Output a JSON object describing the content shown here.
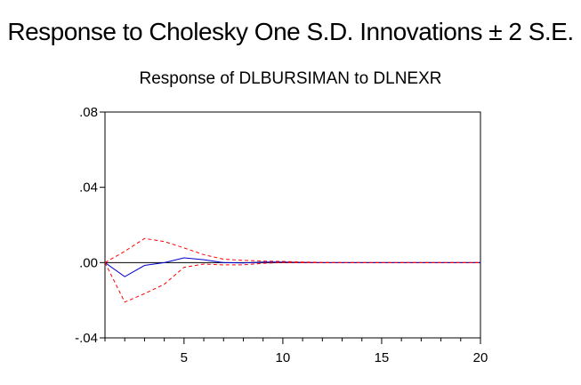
{
  "chart_data": {
    "type": "line",
    "title": "Response to Cholesky One S.D. Innovations ± 2 S.E.",
    "subtitle": "Response of DLBURSIMAN to DLNEXR",
    "xlim": [
      1,
      20
    ],
    "ylim": [
      -0.04,
      0.08
    ],
    "x_ticks": [
      5,
      10,
      15,
      20
    ],
    "x_tick_labels": [
      "5",
      "10",
      "15",
      "20"
    ],
    "y_ticks": [
      0.08,
      0.04,
      0.0,
      -0.04
    ],
    "y_tick_labels": [
      ".08",
      ".04",
      ".00",
      "-.04"
    ],
    "grid": false,
    "x": [
      1,
      2,
      3,
      4,
      5,
      6,
      7,
      8,
      9,
      10,
      11,
      12,
      13,
      14,
      15,
      16,
      17,
      18,
      19,
      20
    ],
    "series": [
      {
        "role": "response",
        "color": "#0000cc",
        "dash": "solid",
        "values": [
          0.0,
          -0.0075,
          -0.0015,
          0.0,
          0.0025,
          0.0015,
          0.0,
          -0.0002,
          0.0003,
          0.0003,
          0.0001,
          0.0,
          0.0,
          0.0,
          0.0,
          0.0,
          0.0,
          0.0,
          0.0,
          0.0
        ]
      },
      {
        "role": "upper-band",
        "color": "#ff0000",
        "dash": "dashed",
        "values": [
          0.0,
          0.006,
          0.0128,
          0.0112,
          0.0078,
          0.0042,
          0.0018,
          0.0012,
          0.0008,
          0.0006,
          0.0003,
          0.0001,
          0.0,
          0.0,
          0.0,
          0.0,
          0.0,
          0.0,
          0.0,
          0.0
        ]
      },
      {
        "role": "lower-band",
        "color": "#ff0000",
        "dash": "dashed",
        "values": [
          0.0,
          -0.021,
          -0.0165,
          -0.0115,
          -0.0025,
          -0.0008,
          -0.0012,
          -0.0012,
          -0.0004,
          0.0,
          -0.0001,
          -0.0001,
          0.0,
          0.0,
          0.0,
          0.0,
          0.0,
          0.0,
          0.0,
          0.0
        ]
      }
    ]
  }
}
